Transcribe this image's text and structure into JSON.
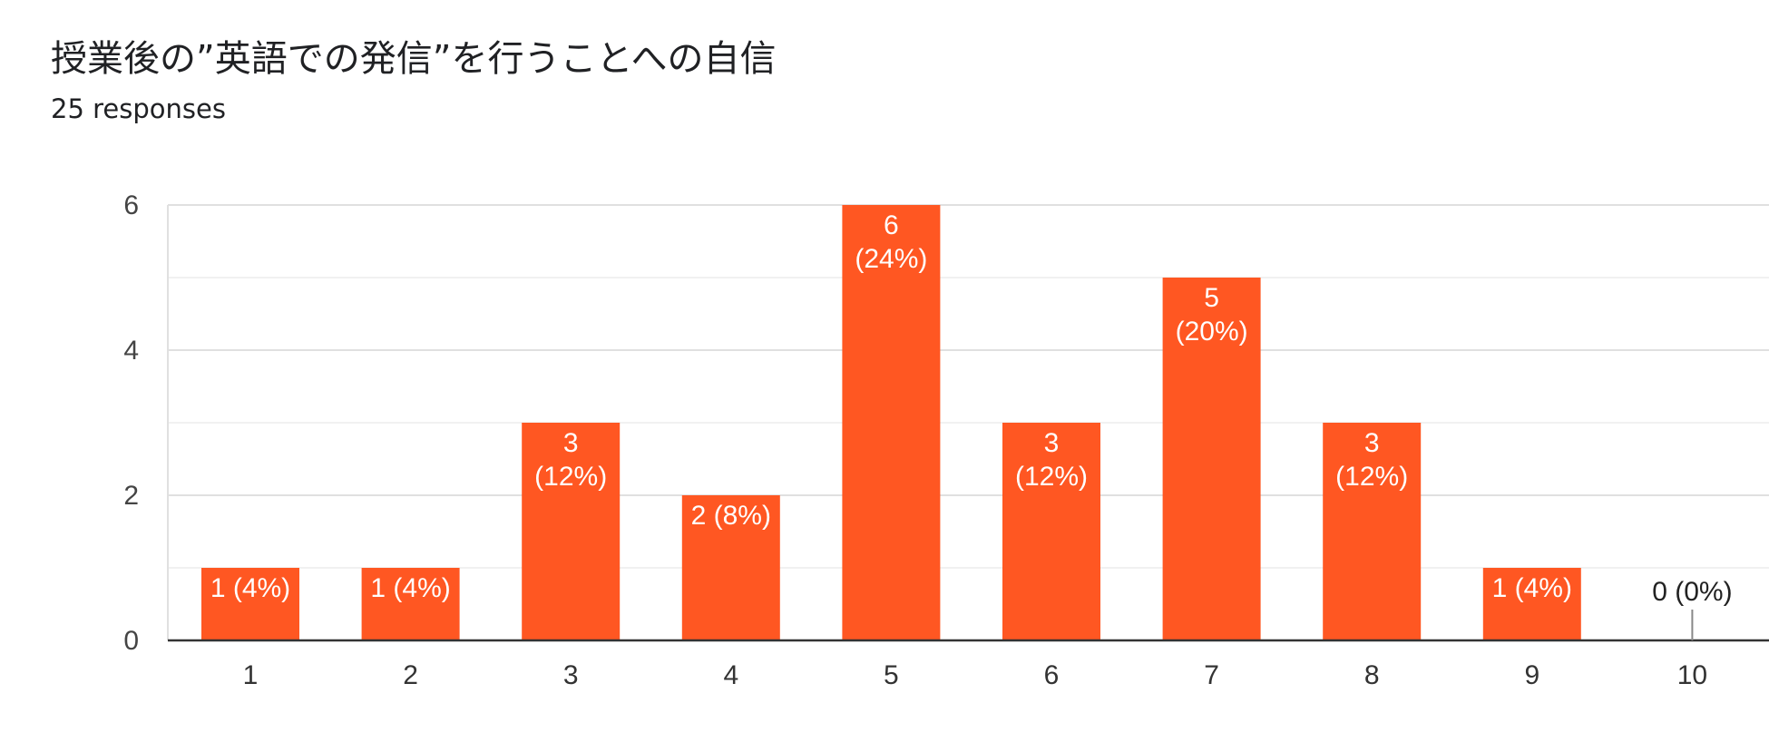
{
  "chart_data": {
    "type": "bar",
    "title": "授業後の”英語での発信”を行うことへの自信",
    "subtitle": "25 responses",
    "categories": [
      "1",
      "2",
      "3",
      "4",
      "5",
      "6",
      "7",
      "8",
      "9",
      "10"
    ],
    "values": [
      1,
      1,
      3,
      2,
      6,
      3,
      5,
      3,
      1,
      0
    ],
    "data_labels": [
      [
        "1 (4%)"
      ],
      [
        "1 (4%)"
      ],
      [
        "3",
        "(12%)"
      ],
      [
        "2 (8%)"
      ],
      [
        "6",
        "(24%)"
      ],
      [
        "3",
        "(12%)"
      ],
      [
        "5",
        "(20%)"
      ],
      [
        "3",
        "(12%)"
      ],
      [
        "1 (4%)"
      ],
      [
        "0 (0%)"
      ]
    ],
    "ylim": [
      0,
      6
    ],
    "yticks": [
      "0",
      "2",
      "4",
      "6"
    ],
    "minor_gridlines": [
      1,
      3,
      5
    ],
    "bar_color": "#ff5722",
    "grid": true,
    "legend": "none",
    "xlabel": "",
    "ylabel": ""
  }
}
